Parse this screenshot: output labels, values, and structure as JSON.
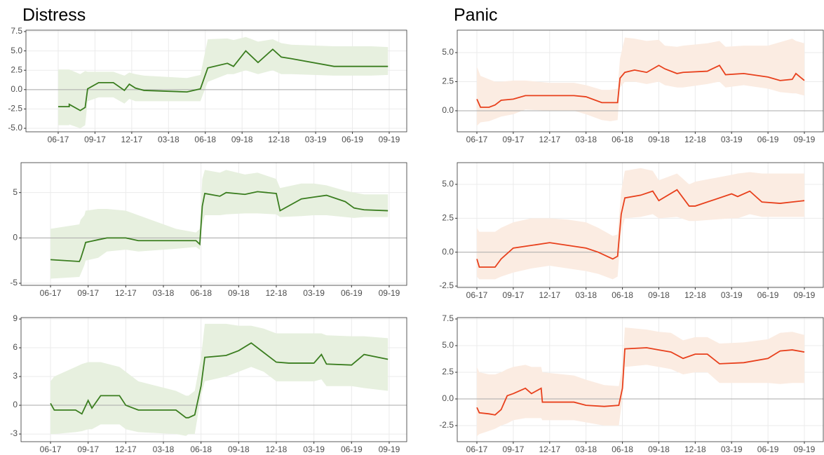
{
  "chart_data": [
    {
      "type": "line",
      "title": "Distress",
      "zero_line": true,
      "grid": true,
      "xlim": [
        3.37,
        34.43
      ],
      "ylim": [
        -5.45,
        7.68
      ],
      "xticks": [
        {
          "value": 6,
          "label": "06-17"
        },
        {
          "value": 9,
          "label": "09-17"
        },
        {
          "value": 12,
          "label": "12-17"
        },
        {
          "value": 15,
          "label": "03-18"
        },
        {
          "value": 18,
          "label": "06-18"
        },
        {
          "value": 21,
          "label": "09-18"
        },
        {
          "value": 24,
          "label": "12-18"
        },
        {
          "value": 27,
          "label": "03-19"
        },
        {
          "value": 30,
          "label": "06-19"
        },
        {
          "value": 33,
          "label": "09-19"
        }
      ],
      "yticks": [
        {
          "value": -5,
          "label": "-5.0"
        },
        {
          "value": -2.5,
          "label": "-2.5"
        },
        {
          "value": 0,
          "label": "0.0"
        },
        {
          "value": 2.5,
          "label": "2.5"
        },
        {
          "value": 5,
          "label": "5.0"
        },
        {
          "value": 7.5,
          "label": "7.5"
        }
      ],
      "x": [
        6,
        6.9,
        6.9,
        7.8,
        8.2,
        8.4,
        9.3,
        10.5,
        11.4,
        11.8,
        12.3,
        13,
        16.5,
        17.6,
        18.2,
        19.8,
        20.3,
        21.3,
        22.3,
        23.5,
        24.2,
        25,
        28.5,
        31.5,
        32.9
      ],
      "series": [
        {
          "color": "#3a7d1f",
          "band_color": "#e7f0df",
          "values": [
            -2.2,
            -2.2,
            -1.9,
            -2.7,
            -2.3,
            0.1,
            0.9,
            0.9,
            -0.1,
            0.7,
            0.2,
            -0.1,
            -0.3,
            0.1,
            2.8,
            3.4,
            3.0,
            5.0,
            3.5,
            5.2,
            4.2,
            4.0,
            3.0,
            3.0,
            3.0
          ],
          "lower": [
            -4.6,
            -4.6,
            -4.5,
            -5.0,
            -4.6,
            -1.5,
            -1.0,
            -1.0,
            -1.8,
            -1.2,
            -1.5,
            -1.5,
            -1.5,
            -1.5,
            1.0,
            2.0,
            2.0,
            2.5,
            2.0,
            2.5,
            2.0,
            2.0,
            1.8,
            1.8,
            1.9
          ],
          "upper": [
            2.6,
            2.6,
            2.6,
            2.0,
            2.4,
            2.3,
            2.3,
            2.3,
            1.8,
            2.2,
            2.0,
            1.8,
            1.5,
            1.9,
            6.5,
            6.6,
            6.4,
            6.8,
            6.2,
            6.5,
            6.0,
            5.8,
            5.6,
            5.6,
            5.5
          ]
        }
      ]
    },
    {
      "type": "line",
      "zero_line": true,
      "grid": true,
      "xlim": [
        3.65,
        34.4
      ],
      "ylim": [
        -5.23,
        8.3
      ],
      "xticks": [
        {
          "value": 6,
          "label": "06-17"
        },
        {
          "value": 9,
          "label": "09-17"
        },
        {
          "value": 12,
          "label": "12-17"
        },
        {
          "value": 15,
          "label": "03-18"
        },
        {
          "value": 18,
          "label": "06-18"
        },
        {
          "value": 21,
          "label": "09-18"
        },
        {
          "value": 24,
          "label": "12-18"
        },
        {
          "value": 27,
          "label": "03-19"
        },
        {
          "value": 30,
          "label": "06-19"
        },
        {
          "value": 33,
          "label": "09-19"
        }
      ],
      "yticks": [
        -5,
        0,
        5
      ],
      "x": [
        6,
        8.3,
        8.4,
        8.7,
        8.8,
        9.8,
        10.5,
        12,
        13,
        16,
        17.6,
        17.9,
        18.1,
        18.3,
        19.5,
        20,
        21.5,
        22.5,
        24,
        24.3,
        26,
        27,
        28,
        29.5,
        30.2,
        31,
        32.9
      ],
      "series": [
        {
          "color": "#3a7d1f",
          "band_color": "#e7f0df",
          "values": [
            -2.4,
            -2.6,
            -2.3,
            -1.0,
            -0.5,
            -0.2,
            0,
            0,
            -0.3,
            -0.3,
            -0.3,
            -0.7,
            3.5,
            4.9,
            4.6,
            5.0,
            4.8,
            5.1,
            4.9,
            3.0,
            4.3,
            4.5,
            4.7,
            4.0,
            3.3,
            3.1,
            3.0
          ],
          "lower": [
            -4.5,
            -4.3,
            -4.0,
            -3.0,
            -2.5,
            -2.2,
            -1.5,
            -1.3,
            -1.5,
            -1.2,
            -1.0,
            -1.3,
            1.5,
            2.5,
            2.5,
            2.6,
            2.7,
            2.7,
            2.6,
            2.3,
            2.4,
            2.5,
            2.5,
            2.3,
            2.2,
            2.3,
            2.3
          ],
          "upper": [
            1.0,
            1.5,
            2.0,
            2.5,
            3.0,
            3.2,
            3.2,
            3.0,
            2.5,
            1.0,
            0.6,
            1.0,
            6.5,
            7.5,
            7.2,
            7.5,
            7.0,
            7.2,
            6.5,
            5.5,
            6.0,
            6.0,
            5.8,
            5.2,
            5.0,
            4.8,
            4.8
          ]
        }
      ]
    },
    {
      "type": "line",
      "zero_line": true,
      "grid": true,
      "xlim": [
        3.65,
        34.4
      ],
      "ylim": [
        -3.8,
        9.15
      ],
      "xticks": [
        {
          "value": 6,
          "label": "06-17"
        },
        {
          "value": 9,
          "label": "09-17"
        },
        {
          "value": 12,
          "label": "12-17"
        },
        {
          "value": 15,
          "label": "03-18"
        },
        {
          "value": 18,
          "label": "06-18"
        },
        {
          "value": 21,
          "label": "09-18"
        },
        {
          "value": 24,
          "label": "12-18"
        },
        {
          "value": 27,
          "label": "03-19"
        },
        {
          "value": 30,
          "label": "06-19"
        },
        {
          "value": 33,
          "label": "09-19"
        }
      ],
      "yticks": [
        -3,
        0,
        3,
        6,
        9
      ],
      "x": [
        6,
        6.3,
        8,
        8.5,
        9,
        9.3,
        10,
        11.5,
        12,
        13,
        16,
        16.8,
        17,
        17.5,
        18,
        18.3,
        20,
        21,
        22,
        23,
        24,
        25,
        27,
        27.6,
        28,
        30,
        31,
        32.9
      ],
      "series": [
        {
          "color": "#3a7d1f",
          "band_color": "#e7f0df",
          "values": [
            0.2,
            -0.5,
            -0.5,
            -0.9,
            0.5,
            -0.3,
            1.0,
            1.0,
            0.0,
            -0.5,
            -0.5,
            -1.3,
            -1.3,
            -1.0,
            2.0,
            5.0,
            5.2,
            5.7,
            6.5,
            5.5,
            4.5,
            4.4,
            4.4,
            5.3,
            4.3,
            4.2,
            5.3,
            4.8
          ],
          "lower": [
            -3.0,
            -3.0,
            -2.8,
            -2.7,
            -2.5,
            -2.5,
            -2.0,
            -2.0,
            -2.5,
            -2.8,
            -3.0,
            -3.2,
            -3.0,
            -3.0,
            1.0,
            2.5,
            3.0,
            3.5,
            4.0,
            3.5,
            2.5,
            2.5,
            2.5,
            2.7,
            2.0,
            2.0,
            1.8,
            1.5
          ],
          "upper": [
            2.5,
            3.0,
            4.0,
            4.3,
            4.5,
            4.5,
            4.5,
            4.0,
            3.5,
            2.5,
            1.5,
            1.0,
            1.0,
            1.5,
            5.0,
            8.5,
            8.5,
            8.3,
            8.3,
            8.0,
            7.5,
            7.5,
            7.5,
            7.5,
            7.3,
            7.2,
            7.2,
            7.0
          ]
        }
      ]
    },
    {
      "type": "line",
      "title": "Panic",
      "zero_line": true,
      "grid": true,
      "xlim": [
        4.38,
        34.56
      ],
      "ylim": [
        -1.81,
        6.93
      ],
      "xticks": [
        {
          "value": 6,
          "label": "06-17"
        },
        {
          "value": 9,
          "label": "09-17"
        },
        {
          "value": 12,
          "label": "12-17"
        },
        {
          "value": 15,
          "label": "03-18"
        },
        {
          "value": 18,
          "label": "06-18"
        },
        {
          "value": 21,
          "label": "09-18"
        },
        {
          "value": 24,
          "label": "12-18"
        },
        {
          "value": 27,
          "label": "03-19"
        },
        {
          "value": 30,
          "label": "06-19"
        },
        {
          "value": 33,
          "label": "09-19"
        }
      ],
      "yticks": [
        {
          "value": 0,
          "label": "0.0"
        },
        {
          "value": 2.5,
          "label": "2.5"
        },
        {
          "value": 5,
          "label": "5.0"
        }
      ],
      "x": [
        6,
        6.3,
        7,
        7.5,
        8,
        9,
        10,
        12,
        14,
        15,
        16.3,
        17,
        17.6,
        17.8,
        18.2,
        19,
        20,
        21,
        21.5,
        22.5,
        23,
        25,
        26,
        26.5,
        28,
        30,
        31,
        32,
        32.3,
        33
      ],
      "series": [
        {
          "color": "#e8401c",
          "band_color": "#fbece2",
          "values": [
            1.0,
            0.3,
            0.3,
            0.5,
            0.9,
            1.0,
            1.3,
            1.3,
            1.3,
            1.2,
            0.7,
            0.7,
            0.7,
            2.8,
            3.3,
            3.5,
            3.3,
            3.9,
            3.6,
            3.2,
            3.3,
            3.4,
            3.9,
            3.1,
            3.2,
            2.9,
            2.6,
            2.7,
            3.2,
            2.6
          ],
          "lower": [
            -1.3,
            -1.0,
            -0.9,
            -0.7,
            -0.5,
            -0.3,
            0.1,
            0.0,
            0.0,
            -0.3,
            -0.8,
            -0.9,
            -0.8,
            2.0,
            2.5,
            2.5,
            2.3,
            2.5,
            2.2,
            2.0,
            2.0,
            2.3,
            2.5,
            2.0,
            2.2,
            1.9,
            1.6,
            1.5,
            1.5,
            1.3
          ],
          "upper": [
            3.8,
            3.0,
            2.7,
            2.5,
            2.5,
            2.6,
            2.6,
            2.4,
            2.4,
            2.2,
            1.8,
            1.8,
            1.9,
            4.5,
            6.3,
            6.2,
            6.0,
            6.1,
            5.6,
            5.5,
            5.6,
            5.8,
            6.0,
            5.5,
            5.6,
            5.6,
            5.9,
            6.2,
            6.0,
            5.8
          ]
        }
      ]
    },
    {
      "type": "line",
      "zero_line": true,
      "grid": true,
      "xlim": [
        4.38,
        34.56
      ],
      "ylim": [
        -2.6,
        6.6
      ],
      "xticks": [
        {
          "value": 6,
          "label": "06-17"
        },
        {
          "value": 9,
          "label": "09-17"
        },
        {
          "value": 12,
          "label": "12-17"
        },
        {
          "value": 15,
          "label": "03-18"
        },
        {
          "value": 18,
          "label": "06-18"
        },
        {
          "value": 21,
          "label": "09-18"
        },
        {
          "value": 24,
          "label": "12-18"
        },
        {
          "value": 27,
          "label": "03-19"
        },
        {
          "value": 30,
          "label": "06-19"
        },
        {
          "value": 33,
          "label": "09-19"
        }
      ],
      "yticks": [
        {
          "value": -2.5,
          "label": "-2.5"
        },
        {
          "value": 0,
          "label": "0.0"
        },
        {
          "value": 2.5,
          "label": "2.5"
        },
        {
          "value": 5,
          "label": "5.0"
        }
      ],
      "x": [
        6,
        6.2,
        7.5,
        8,
        9,
        10.5,
        12,
        13.5,
        15,
        16,
        17.2,
        17.6,
        17.9,
        18.2,
        19.5,
        20.5,
        21,
        22.5,
        23.5,
        24,
        27,
        27.5,
        28.5,
        29.5,
        31,
        33
      ],
      "series": [
        {
          "color": "#e8401c",
          "band_color": "#fbece2",
          "values": [
            -0.5,
            -1.1,
            -1.1,
            -0.5,
            0.3,
            0.5,
            0.7,
            0.5,
            0.3,
            0,
            -0.5,
            -0.3,
            2.8,
            4.0,
            4.2,
            4.5,
            3.8,
            4.6,
            3.4,
            3.4,
            4.3,
            4.1,
            4.5,
            3.7,
            3.6,
            3.8
          ],
          "lower": [
            -1.8,
            -2.0,
            -2.0,
            -1.8,
            -1.5,
            -1.2,
            -1.0,
            -1.2,
            -1.4,
            -1.6,
            -2.0,
            -1.8,
            1.5,
            2.5,
            2.6,
            2.8,
            2.5,
            2.6,
            2.3,
            2.3,
            2.5,
            2.5,
            2.8,
            2.6,
            2.6,
            2.6
          ],
          "upper": [
            1.8,
            1.5,
            1.5,
            1.8,
            2.2,
            2.5,
            2.5,
            2.4,
            2.2,
            1.8,
            1.2,
            1.3,
            4.5,
            6.0,
            6.2,
            6.0,
            5.3,
            5.8,
            5.0,
            5.2,
            5.7,
            5.8,
            5.9,
            5.8,
            5.8,
            5.8
          ]
        }
      ]
    },
    {
      "type": "line",
      "zero_line": true,
      "grid": true,
      "xlim": [
        4.38,
        34.56
      ],
      "ylim": [
        -4.01,
        7.63
      ],
      "xticks": [
        {
          "value": 6,
          "label": "06-17"
        },
        {
          "value": 9,
          "label": "09-17"
        },
        {
          "value": 12,
          "label": "12-17"
        },
        {
          "value": 15,
          "label": "03-18"
        },
        {
          "value": 18,
          "label": "06-18"
        },
        {
          "value": 21,
          "label": "09-18"
        },
        {
          "value": 24,
          "label": "12-18"
        },
        {
          "value": 27,
          "label": "03-19"
        },
        {
          "value": 30,
          "label": "06-19"
        },
        {
          "value": 33,
          "label": "09-19"
        }
      ],
      "yticks": [
        {
          "value": -2.5,
          "label": "-2.5"
        },
        {
          "value": 0,
          "label": "0.0"
        },
        {
          "value": 2.5,
          "label": "2.5"
        },
        {
          "value": 5,
          "label": "5.0"
        },
        {
          "value": 7.5,
          "label": "7.5"
        }
      ],
      "x": [
        6,
        6.2,
        7,
        7.5,
        8,
        8.5,
        9,
        10,
        10.5,
        11.3,
        11.4,
        14,
        15,
        16.5,
        17.7,
        18.0,
        18.2,
        20,
        21,
        22,
        23,
        24,
        25,
        26,
        28,
        30,
        31,
        32,
        33
      ],
      "series": [
        {
          "color": "#e8401c",
          "band_color": "#fbece2",
          "values": [
            -0.8,
            -1.3,
            -1.4,
            -1.5,
            -1.0,
            0.3,
            0.5,
            1.0,
            0.5,
            1.0,
            -0.3,
            -0.3,
            -0.6,
            -0.7,
            -0.6,
            1.0,
            4.7,
            4.8,
            4.6,
            4.4,
            3.8,
            4.2,
            4.2,
            3.3,
            3.4,
            3.8,
            4.5,
            4.6,
            4.4
          ],
          "lower": [
            -3.5,
            -3.3,
            -3.0,
            -2.8,
            -2.5,
            -2.3,
            -2.0,
            -1.8,
            -1.8,
            -1.8,
            -2.0,
            -2.0,
            -2.2,
            -2.5,
            -2.5,
            0,
            3.0,
            3.2,
            3.0,
            2.8,
            2.3,
            2.5,
            2.5,
            1.5,
            1.5,
            1.5,
            1.4,
            1.5,
            1.5
          ],
          "upper": [
            3.0,
            2.5,
            2.3,
            2.3,
            2.5,
            2.8,
            3.0,
            3.2,
            3.0,
            3.0,
            2.5,
            2.2,
            1.8,
            1.3,
            1.2,
            3.0,
            6.7,
            6.5,
            6.3,
            6.2,
            5.5,
            5.8,
            5.8,
            5.2,
            5.3,
            5.6,
            6.2,
            6.3,
            6.0
          ]
        }
      ]
    }
  ]
}
